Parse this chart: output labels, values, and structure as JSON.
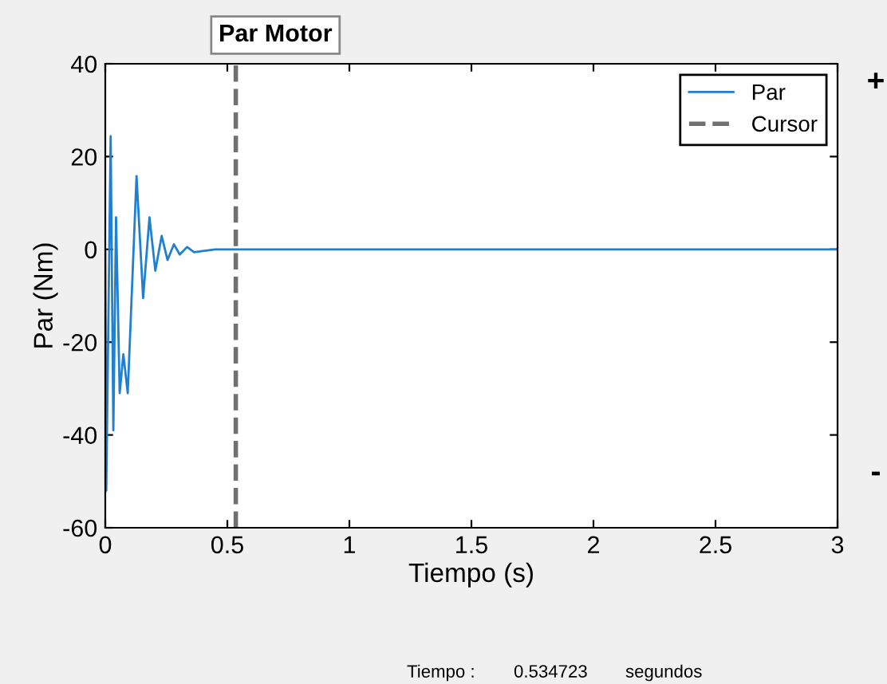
{
  "chart_data": {
    "type": "line",
    "title": "Par Motor",
    "xlabel": "Tiempo (s)",
    "ylabel": "Par (Nm)",
    "xlim": [
      0,
      3
    ],
    "xticks": [
      0,
      0.5,
      1,
      1.5,
      2,
      2.5,
      3
    ],
    "ylim": [
      -60,
      40
    ],
    "yticks": [
      -60,
      -40,
      -20,
      0,
      20,
      40
    ],
    "series": [
      {
        "name": "Par",
        "color": "#1f7fd0",
        "x": [
          0,
          0.004,
          0.022,
          0.033,
          0.044,
          0.059,
          0.074,
          0.092,
          0.128,
          0.155,
          0.181,
          0.205,
          0.231,
          0.255,
          0.281,
          0.305,
          0.335,
          0.364,
          0.45,
          1,
          1.5,
          2,
          2.5,
          3
        ],
        "values": [
          0,
          -52,
          24.4,
          -39,
          6.9,
          -31,
          -22.6,
          -31,
          15.8,
          -10.5,
          6.9,
          -4.6,
          2.9,
          -2.3,
          1.1,
          -1.1,
          0.5,
          -0.6,
          0,
          0,
          0,
          0,
          0,
          0
        ]
      },
      {
        "name": "Cursor",
        "color": "#707070",
        "line_style": "dashed",
        "x": [
          0.534723,
          0.534723
        ],
        "values": [
          -60,
          40
        ]
      }
    ],
    "legend": "top right",
    "grid": false,
    "annotations": [
      "Tiempo :",
      "0.534723",
      "segundos",
      "+",
      "-"
    ]
  }
}
